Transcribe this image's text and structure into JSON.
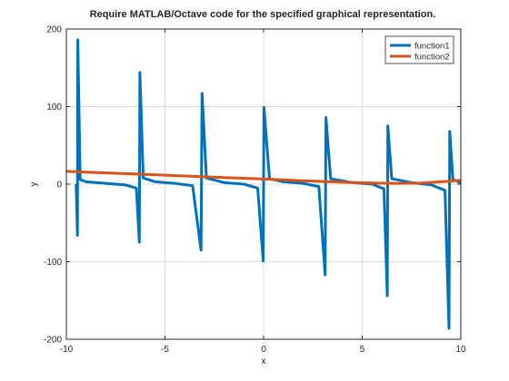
{
  "chart_data": {
    "type": "line",
    "title": "Require MATLAB/Octave code for the specified graphical representation.",
    "xlabel": "x",
    "ylabel": "y",
    "xlim": [
      -10,
      10
    ],
    "ylim": [
      -200,
      200
    ],
    "xticks": [
      -10,
      -5,
      0,
      5,
      10
    ],
    "yticks": [
      -200,
      -100,
      0,
      100,
      200
    ],
    "grid": true,
    "box": true,
    "legend_position": "top-right",
    "series": [
      {
        "name": "function1",
        "color": "#0072bd",
        "description_points": [
          [
            -9.5,
            0.0
          ],
          [
            -9.44,
            -66
          ],
          [
            -9.42,
            186
          ],
          [
            -9.3,
            6
          ],
          [
            -9.0,
            3
          ],
          [
            -8.0,
            1
          ],
          [
            -7.0,
            -1
          ],
          [
            -6.45,
            -5
          ],
          [
            -6.3,
            -75
          ],
          [
            -6.27,
            144
          ],
          [
            -6.1,
            8
          ],
          [
            -5.5,
            3
          ],
          [
            -4.5,
            1
          ],
          [
            -3.6,
            -2
          ],
          [
            -3.17,
            -85
          ],
          [
            -3.12,
            117
          ],
          [
            -2.9,
            8
          ],
          [
            -2.0,
            2
          ],
          [
            -1.0,
            0
          ],
          [
            -0.3,
            -5
          ],
          [
            -0.02,
            -99
          ],
          [
            0.02,
            99
          ],
          [
            0.3,
            7
          ],
          [
            1.0,
            3
          ],
          [
            2.0,
            1
          ],
          [
            2.8,
            -3
          ],
          [
            3.12,
            -117
          ],
          [
            3.16,
            86
          ],
          [
            3.4,
            7
          ],
          [
            4.5,
            2
          ],
          [
            5.5,
            0
          ],
          [
            6.1,
            -6
          ],
          [
            6.27,
            -144
          ],
          [
            6.3,
            75
          ],
          [
            6.5,
            7
          ],
          [
            7.5,
            2
          ],
          [
            8.5,
            -1
          ],
          [
            9.2,
            -8
          ],
          [
            9.4,
            -186
          ],
          [
            9.44,
            68
          ],
          [
            9.6,
            6
          ],
          [
            10.0,
            2
          ]
        ]
      },
      {
        "name": "function2",
        "color": "#d95319",
        "x": [
          -10,
          -8,
          -6,
          -4,
          -2,
          0,
          2,
          4,
          6,
          7,
          8,
          9,
          10
        ],
        "y": [
          16.5,
          14.5,
          12.5,
          10.5,
          8.5,
          6.5,
          4.5,
          2.5,
          1.2,
          1.0,
          1.5,
          3.0,
          5.0
        ]
      }
    ]
  }
}
